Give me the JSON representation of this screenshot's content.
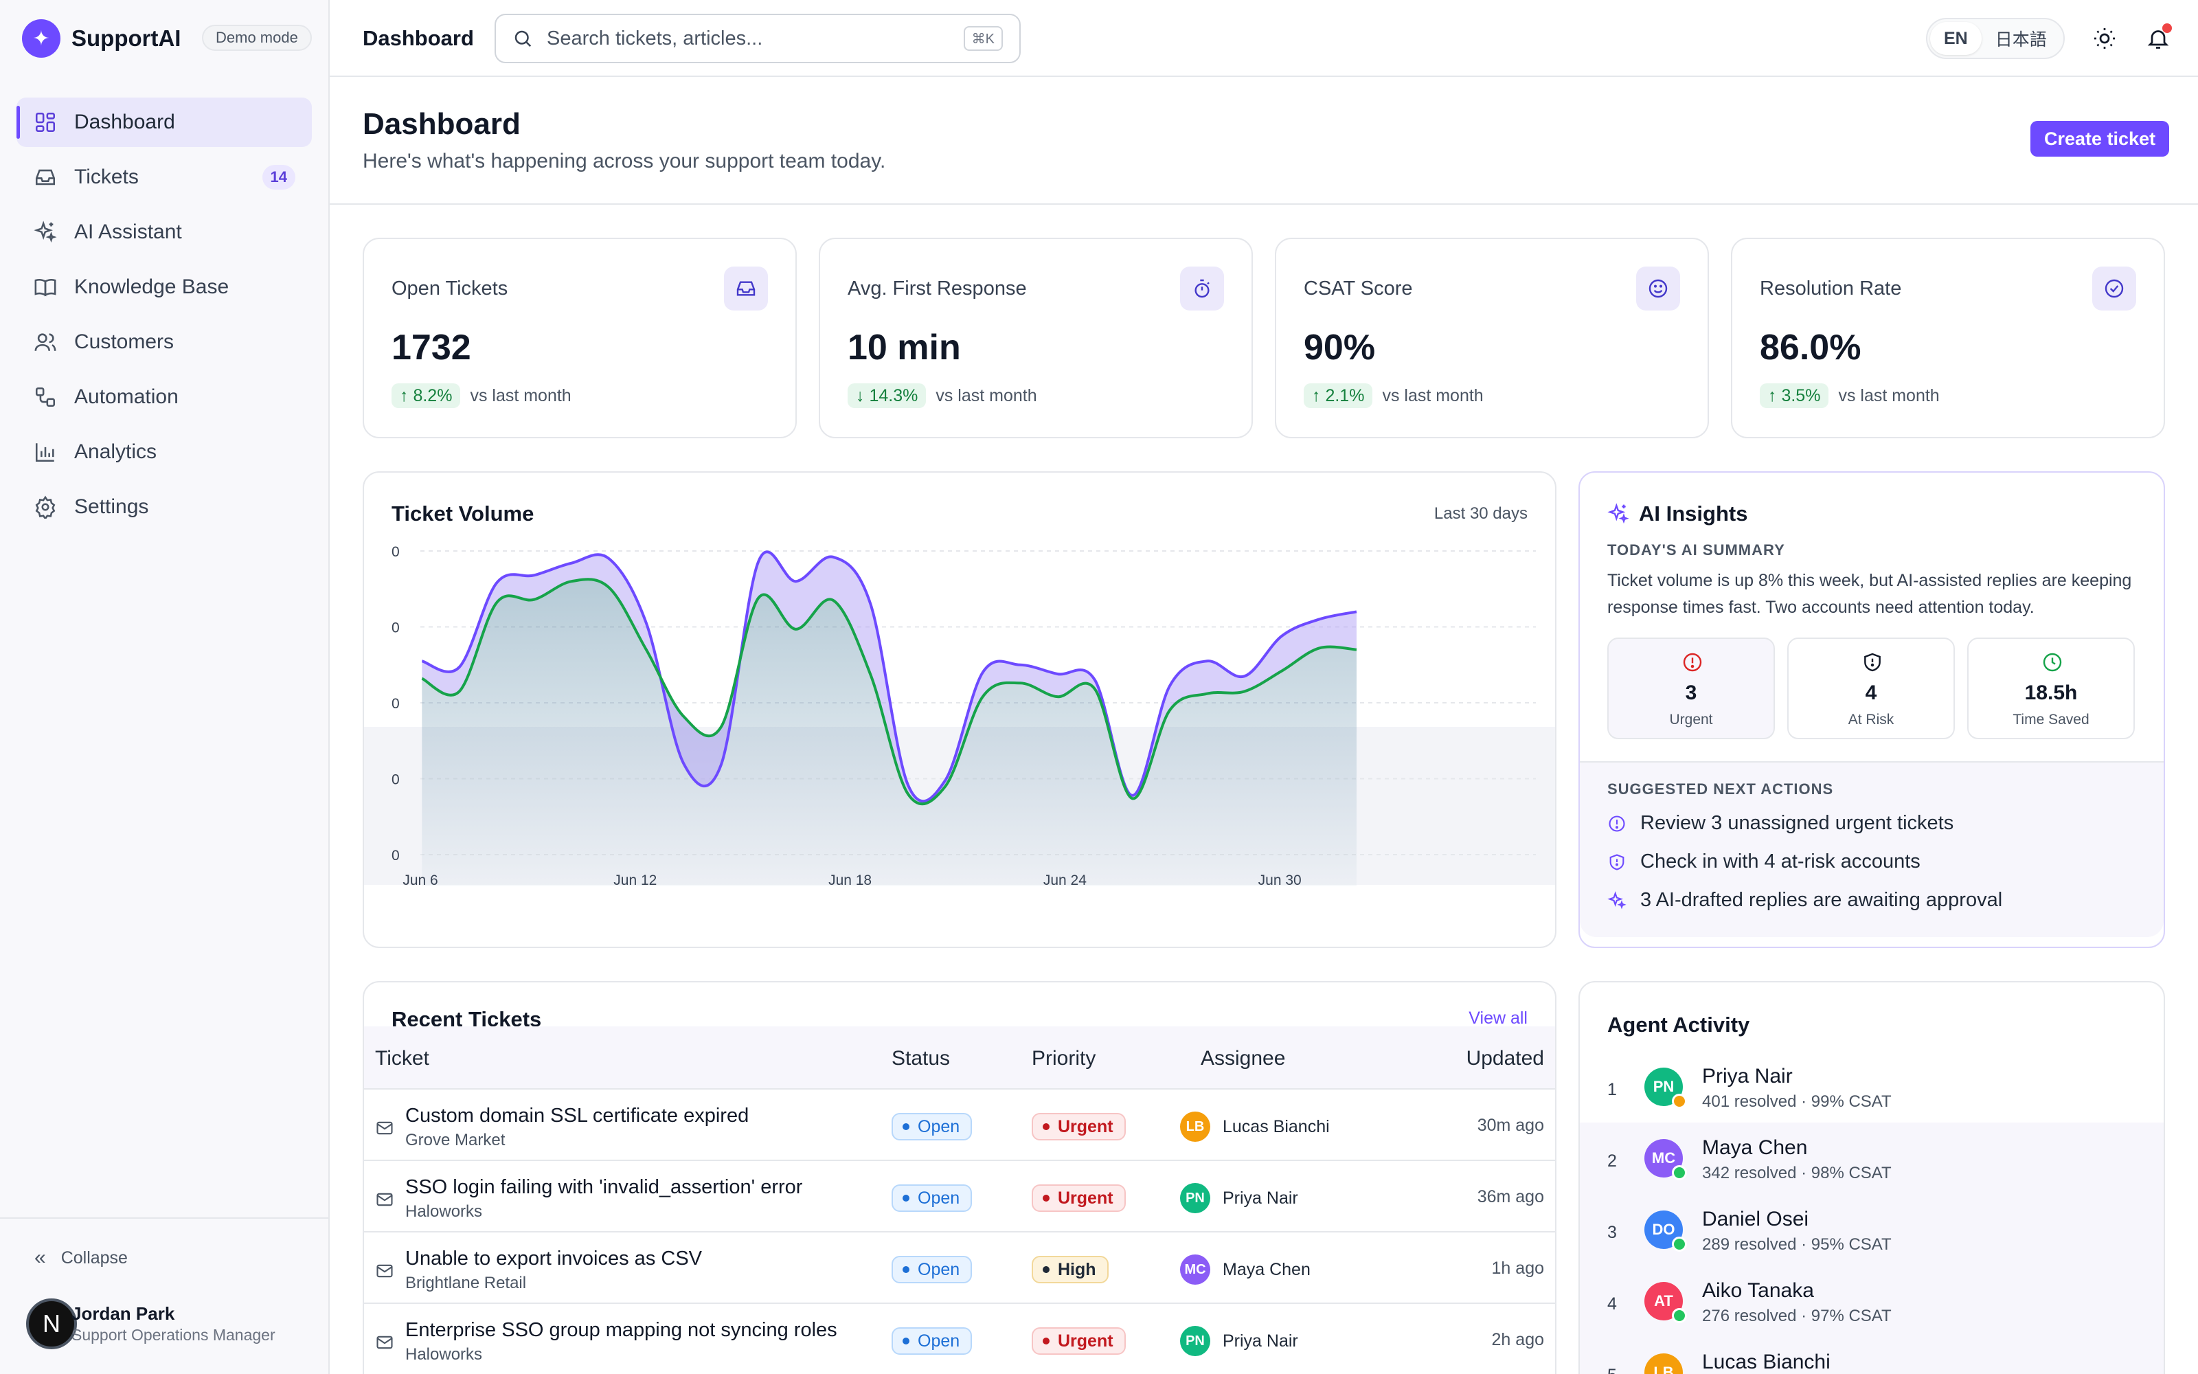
{
  "brand": {
    "name": "SupportAI",
    "logo_glyph": "✦",
    "demo_badge": "Demo mode",
    "accent": "#6d4aff"
  },
  "sidebar": {
    "items": [
      {
        "label": "Dashboard",
        "icon": "dashboard-icon",
        "active": true
      },
      {
        "label": "Tickets",
        "icon": "inbox-icon",
        "count": "14"
      },
      {
        "label": "AI Assistant",
        "icon": "sparkles-icon"
      },
      {
        "label": "Knowledge Base",
        "icon": "book-icon"
      },
      {
        "label": "Customers",
        "icon": "users-icon"
      },
      {
        "label": "Automation",
        "icon": "workflow-icon"
      },
      {
        "label": "Analytics",
        "icon": "bar-chart-icon"
      },
      {
        "label": "Settings",
        "icon": "gear-icon"
      }
    ],
    "collapse_label": "Collapse",
    "user": {
      "initial": "N",
      "name": "Jordan Park",
      "role": "Support Operations Manager"
    }
  },
  "topbar": {
    "title": "Dashboard",
    "search_placeholder": "Search tickets, articles...",
    "search_shortcut": "⌘K",
    "languages": [
      "EN",
      "日本語"
    ],
    "active_language": "EN"
  },
  "page": {
    "title": "Dashboard",
    "subtitle": "Here's what's happening across your support team today.",
    "create_button": "Create ticket"
  },
  "stats": [
    {
      "label": "Open Tickets",
      "value": "1732",
      "delta": "8.2%",
      "direction": "up",
      "note": "vs last month",
      "icon": "inbox-icon"
    },
    {
      "label": "Avg. First Response",
      "value": "10 min",
      "delta": "14.3%",
      "direction": "down",
      "note": "vs last month",
      "icon": "stopwatch-icon"
    },
    {
      "label": "CSAT Score",
      "value": "90%",
      "delta": "2.1%",
      "direction": "up",
      "note": "vs last month",
      "icon": "smile-icon"
    },
    {
      "label": "Resolution Rate",
      "value": "86.0%",
      "delta": "3.5%",
      "direction": "up",
      "note": "vs last month",
      "icon": "check-circle-icon"
    }
  ],
  "chart_data": {
    "type": "area",
    "title": "Ticket Volume",
    "range_label": "Last 30 days",
    "x_ticks": [
      "Jun 6",
      "Jun 12",
      "Jun 18",
      "Jun 24",
      "Jun 30"
    ],
    "y_ticks": [
      "0",
      "0",
      "0",
      "0",
      "0"
    ],
    "x": [
      1,
      2,
      3,
      4,
      5,
      6,
      7,
      8,
      9,
      10,
      11,
      12,
      13,
      14,
      15,
      16,
      17,
      18,
      19,
      20,
      21,
      22,
      23,
      24,
      25,
      26
    ],
    "series": [
      {
        "name": "",
        "color": "#6d4aff",
        "values": [
          0.55,
          0.47,
          1.58,
          1.68,
          1.84,
          1.9,
          1.05,
          -0.8,
          -0.82,
          1.86,
          1.6,
          1.92,
          1.3,
          -1.08,
          -1.02,
          0.4,
          0.5,
          0.38,
          0.3,
          -1.22,
          0.22,
          0.55,
          0.35,
          0.88,
          1.1,
          1.2
        ]
      },
      {
        "name": "",
        "color": "#16a34a",
        "values": [
          0.32,
          0.15,
          1.32,
          1.36,
          1.6,
          1.52,
          0.7,
          -0.18,
          -0.32,
          1.38,
          0.97,
          1.35,
          0.37,
          -1.2,
          -1.1,
          0.08,
          0.26,
          0.08,
          0.18,
          -1.26,
          -0.1,
          0.12,
          0.15,
          0.42,
          0.72,
          0.7
        ]
      }
    ],
    "grid": true,
    "legend": "none"
  },
  "ai": {
    "title": "AI Insights",
    "kicker": "TODAY'S AI SUMMARY",
    "summary": "Ticket volume is up 8% this week, but AI-assisted replies are keeping response times fast. Two accounts need attention today.",
    "metrics": [
      {
        "value": "3",
        "label": "Urgent",
        "icon": "alert-circle-icon",
        "color": "#dc2626"
      },
      {
        "value": "4",
        "label": "At Risk",
        "icon": "shield-icon",
        "color": "#111827"
      },
      {
        "value": "18.5h",
        "label": "Time Saved",
        "icon": "clock-icon",
        "color": "#16a34a"
      }
    ],
    "actions_title": "SUGGESTED NEXT ACTIONS",
    "actions": [
      {
        "label": "Review 3 unassigned urgent tickets",
        "icon": "alert-circle-icon"
      },
      {
        "label": "Check in with 4 at-risk accounts",
        "icon": "shield-icon"
      },
      {
        "label": "3 AI-drafted replies are awaiting approval",
        "icon": "sparkles-icon"
      }
    ]
  },
  "tickets": {
    "title": "Recent Tickets",
    "view_all": "View all",
    "columns": [
      "Ticket",
      "Status",
      "Priority",
      "Assignee",
      "Updated"
    ],
    "rows": [
      {
        "subject": "Custom domain SSL certificate expired",
        "company": "Grove Market",
        "status": "Open",
        "priority": "Urgent",
        "assignee": "Lucas Bianchi",
        "initials": "LB",
        "color": "#f59e0b",
        "updated": "30m ago"
      },
      {
        "subject": "SSO login failing with 'invalid_assertion' error",
        "company": "Haloworks",
        "status": "Open",
        "priority": "Urgent",
        "assignee": "Priya Nair",
        "initials": "PN",
        "color": "#10b981",
        "updated": "36m ago"
      },
      {
        "subject": "Unable to export invoices as CSV",
        "company": "Brightlane Retail",
        "status": "Open",
        "priority": "High",
        "assignee": "Maya Chen",
        "initials": "MC",
        "color": "#8b5cf6",
        "updated": "1h ago"
      },
      {
        "subject": "Enterprise SSO group mapping not syncing roles",
        "company": "Haloworks",
        "status": "Open",
        "priority": "Urgent",
        "assignee": "Priya Nair",
        "initials": "PN",
        "color": "#10b981",
        "updated": "2h ago"
      }
    ]
  },
  "agents": {
    "title": "Agent Activity",
    "list": [
      {
        "rank": "1",
        "name": "Priya Nair",
        "initials": "PN",
        "color": "#10b981",
        "resolved": "401 resolved",
        "csat": "99% CSAT",
        "presence": "#f59e0b"
      },
      {
        "rank": "2",
        "name": "Maya Chen",
        "initials": "MC",
        "color": "#8b5cf6",
        "resolved": "342 resolved",
        "csat": "98% CSAT",
        "presence": "#22c55e"
      },
      {
        "rank": "3",
        "name": "Daniel Osei",
        "initials": "DO",
        "color": "#3b82f6",
        "resolved": "289 resolved",
        "csat": "95% CSAT",
        "presence": "#22c55e"
      },
      {
        "rank": "4",
        "name": "Aiko Tanaka",
        "initials": "AT",
        "color": "#f43f5e",
        "resolved": "276 resolved",
        "csat": "97% CSAT",
        "presence": "#22c55e"
      },
      {
        "rank": "5",
        "name": "Lucas Bianchi",
        "initials": "LB",
        "color": "#f59e0b",
        "resolved": "",
        "csat": "",
        "presence": "#22c55e"
      }
    ]
  }
}
